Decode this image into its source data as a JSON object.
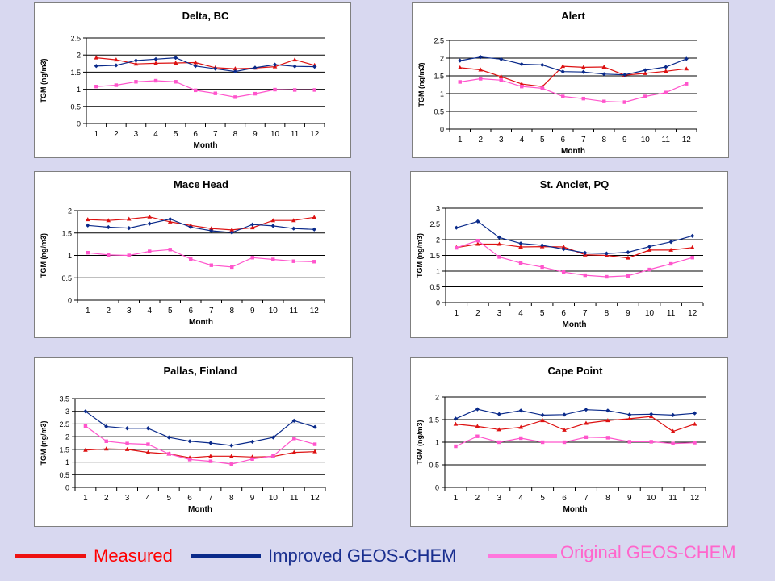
{
  "colors": {
    "background": "#d8d8f0",
    "grid": "#000000"
  },
  "legend": {
    "items": [
      {
        "name": "Measured",
        "color": "#ff0000",
        "line_color": "#ee1111"
      },
      {
        "name": "Improved GEOS-CHEM",
        "color": "#1a2f8f",
        "line_color": "#0a2a8a"
      },
      {
        "name": "Original GEOS-CHEM",
        "color": "#ff66cc",
        "line_color": "#ff77dd"
      }
    ]
  },
  "chart_data": [
    {
      "type": "line",
      "title": "Delta, BC",
      "xlabel": "Month",
      "ylabel": "TGM (ng/m3)",
      "x": [
        1,
        2,
        3,
        4,
        5,
        6,
        7,
        8,
        9,
        10,
        11,
        12
      ],
      "ylim": [
        0,
        2.5
      ],
      "yticks": [
        "0",
        "0.5",
        "1",
        "1.5",
        "2",
        "2.5"
      ],
      "grid": true,
      "series": [
        {
          "name": "Measured",
          "color": "#dd1111",
          "marker": "triangle",
          "values": [
            1.92,
            1.86,
            1.74,
            1.76,
            1.77,
            1.78,
            1.63,
            1.6,
            1.62,
            1.66,
            1.86,
            1.7
          ]
        },
        {
          "name": "Improved GEOS-CHEM",
          "color": "#0a2a8a",
          "marker": "diamond",
          "values": [
            1.68,
            1.7,
            1.84,
            1.88,
            1.92,
            1.68,
            1.6,
            1.52,
            1.63,
            1.72,
            1.67,
            1.66
          ]
        },
        {
          "name": "Original GEOS-CHEM",
          "color": "#ff55cc",
          "marker": "square",
          "values": [
            1.08,
            1.12,
            1.22,
            1.25,
            1.22,
            0.97,
            0.88,
            0.77,
            0.87,
            0.99,
            0.98,
            0.98
          ]
        }
      ]
    },
    {
      "type": "line",
      "title": "Alert",
      "xlabel": "Month",
      "ylabel": "TGM (ng/m3)",
      "x": [
        1,
        2,
        3,
        4,
        5,
        6,
        7,
        8,
        9,
        10,
        11,
        12
      ],
      "ylim": [
        0,
        2.5
      ],
      "yticks": [
        "0",
        "0.5",
        "1",
        "1.5",
        "2",
        "2.5"
      ],
      "grid": true,
      "series": [
        {
          "name": "Measured",
          "color": "#dd1111",
          "marker": "triangle",
          "values": [
            1.73,
            1.67,
            1.48,
            1.27,
            1.2,
            1.77,
            1.74,
            1.75,
            1.52,
            1.57,
            1.63,
            1.7
          ]
        },
        {
          "name": "Improved GEOS-CHEM",
          "color": "#0a2a8a",
          "marker": "diamond",
          "values": [
            1.93,
            2.03,
            1.97,
            1.83,
            1.81,
            1.62,
            1.61,
            1.55,
            1.53,
            1.66,
            1.75,
            1.98
          ]
        },
        {
          "name": "Original GEOS-CHEM",
          "color": "#ff55cc",
          "marker": "square",
          "values": [
            1.33,
            1.42,
            1.38,
            1.2,
            1.15,
            0.92,
            0.86,
            0.78,
            0.76,
            0.92,
            1.03,
            1.28
          ]
        }
      ]
    },
    {
      "type": "line",
      "title": "Mace Head",
      "xlabel": "Month",
      "ylabel": "TGM (ng/m3)",
      "x": [
        1,
        2,
        3,
        4,
        5,
        6,
        7,
        8,
        9,
        10,
        11,
        12
      ],
      "ylim": [
        0,
        2
      ],
      "yticks": [
        "0",
        "0.5",
        "1",
        "1.5",
        "2"
      ],
      "grid": true,
      "series": [
        {
          "name": "Measured",
          "color": "#dd1111",
          "marker": "triangle",
          "values": [
            1.8,
            1.78,
            1.81,
            1.86,
            1.75,
            1.67,
            1.6,
            1.57,
            1.62,
            1.78,
            1.78,
            1.85
          ]
        },
        {
          "name": "Improved GEOS-CHEM",
          "color": "#0a2a8a",
          "marker": "diamond",
          "values": [
            1.67,
            1.63,
            1.61,
            1.71,
            1.81,
            1.63,
            1.55,
            1.51,
            1.69,
            1.66,
            1.6,
            1.58
          ]
        },
        {
          "name": "Original GEOS-CHEM",
          "color": "#ff55cc",
          "marker": "square",
          "values": [
            1.06,
            1.01,
            1.0,
            1.09,
            1.13,
            0.92,
            0.78,
            0.74,
            0.95,
            0.91,
            0.87,
            0.86
          ]
        }
      ]
    },
    {
      "type": "line",
      "title": "St. Anclet, PQ",
      "xlabel": "Month",
      "ylabel": "TGM (ng/m3)",
      "x": [
        1,
        2,
        3,
        4,
        5,
        6,
        7,
        8,
        9,
        10,
        11,
        12
      ],
      "ylim": [
        0,
        3
      ],
      "yticks": [
        "0",
        "0.5",
        "1",
        "1.5",
        "2",
        "2.5",
        "3"
      ],
      "grid": true,
      "series": [
        {
          "name": "Measured",
          "color": "#dd1111",
          "marker": "triangle",
          "values": [
            1.75,
            1.86,
            1.86,
            1.77,
            1.78,
            1.77,
            1.52,
            1.5,
            1.42,
            1.67,
            1.67,
            1.75
          ]
        },
        {
          "name": "Improved GEOS-CHEM",
          "color": "#0a2a8a",
          "marker": "diamond",
          "values": [
            2.38,
            2.58,
            2.07,
            1.88,
            1.82,
            1.7,
            1.58,
            1.56,
            1.6,
            1.78,
            1.93,
            2.12
          ]
        },
        {
          "name": "Original GEOS-CHEM",
          "color": "#ff55cc",
          "marker": "square",
          "values": [
            1.74,
            1.97,
            1.45,
            1.26,
            1.13,
            0.97,
            0.87,
            0.82,
            0.85,
            1.05,
            1.23,
            1.43
          ]
        }
      ]
    },
    {
      "type": "line",
      "title": "Pallas, Finland",
      "xlabel": "Month",
      "ylabel": "TGM (ng/m3)",
      "x": [
        1,
        2,
        3,
        4,
        5,
        6,
        7,
        8,
        9,
        10,
        11,
        12
      ],
      "ylim": [
        0,
        3.5
      ],
      "yticks": [
        "0",
        "0.5",
        "1",
        "1.5",
        "2",
        "2.5",
        "3",
        "3.5"
      ],
      "grid": true,
      "series": [
        {
          "name": "Measured",
          "color": "#dd1111",
          "marker": "triangle",
          "values": [
            1.47,
            1.52,
            1.5,
            1.38,
            1.32,
            1.17,
            1.23,
            1.23,
            1.2,
            1.22,
            1.38,
            1.41
          ]
        },
        {
          "name": "Improved GEOS-CHEM",
          "color": "#0a2a8a",
          "marker": "diamond",
          "values": [
            3.0,
            2.4,
            2.33,
            2.33,
            1.97,
            1.82,
            1.75,
            1.65,
            1.8,
            1.97,
            2.63,
            2.38
          ]
        },
        {
          "name": "Original GEOS-CHEM",
          "color": "#ff55cc",
          "marker": "square",
          "values": [
            2.42,
            1.82,
            1.73,
            1.7,
            1.32,
            1.1,
            1.03,
            0.92,
            1.12,
            1.24,
            1.93,
            1.7
          ]
        }
      ]
    },
    {
      "type": "line",
      "title": "Cape Point",
      "xlabel": "Month",
      "ylabel": "TGM (ng/m3)",
      "x": [
        1,
        2,
        3,
        4,
        5,
        6,
        7,
        8,
        9,
        10,
        11,
        12
      ],
      "ylim": [
        0,
        2
      ],
      "yticks": [
        "0",
        "0.5",
        "1",
        "1.5",
        "2"
      ],
      "grid": true,
      "series": [
        {
          "name": "Measured",
          "color": "#dd1111",
          "marker": "triangle",
          "values": [
            1.4,
            1.35,
            1.28,
            1.33,
            1.48,
            1.27,
            1.42,
            1.48,
            1.52,
            1.57,
            1.24,
            1.4
          ]
        },
        {
          "name": "Improved GEOS-CHEM",
          "color": "#0a2a8a",
          "marker": "diamond",
          "values": [
            1.52,
            1.73,
            1.62,
            1.7,
            1.6,
            1.61,
            1.72,
            1.7,
            1.61,
            1.62,
            1.6,
            1.64
          ]
        },
        {
          "name": "Original GEOS-CHEM",
          "color": "#ff55cc",
          "marker": "square",
          "values": [
            0.91,
            1.13,
            1.0,
            1.09,
            1.0,
            1.0,
            1.11,
            1.1,
            1.01,
            1.01,
            0.97,
            0.99
          ]
        }
      ]
    }
  ]
}
